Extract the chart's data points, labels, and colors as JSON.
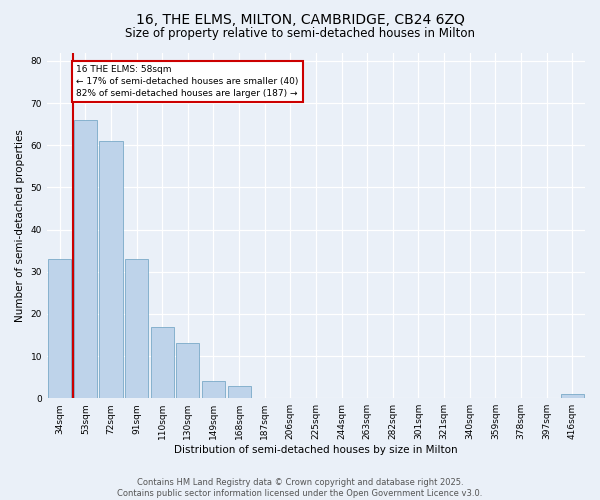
{
  "title_line1": "16, THE ELMS, MILTON, CAMBRIDGE, CB24 6ZQ",
  "title_line2": "Size of property relative to semi-detached houses in Milton",
  "xlabel": "Distribution of semi-detached houses by size in Milton",
  "ylabel": "Number of semi-detached properties",
  "categories": [
    "34sqm",
    "53sqm",
    "72sqm",
    "91sqm",
    "110sqm",
    "130sqm",
    "149sqm",
    "168sqm",
    "187sqm",
    "206sqm",
    "225sqm",
    "244sqm",
    "263sqm",
    "282sqm",
    "301sqm",
    "321sqm",
    "340sqm",
    "359sqm",
    "378sqm",
    "397sqm",
    "416sqm"
  ],
  "values": [
    33,
    66,
    61,
    33,
    17,
    13,
    4,
    3,
    0,
    0,
    0,
    0,
    0,
    0,
    0,
    0,
    0,
    0,
    0,
    0,
    1
  ],
  "bar_color": "#bed3ea",
  "bar_edge_color": "#7aaac8",
  "marker_line_color": "#cc0000",
  "annotation_box_edge_color": "#cc0000",
  "bg_color": "#eaf0f8",
  "grid_color": "#ffffff",
  "pct_smaller": 17,
  "pct_larger": 82,
  "count_smaller": 40,
  "count_larger": 187,
  "ylim": [
    0,
    82
  ],
  "yticks": [
    0,
    10,
    20,
    30,
    40,
    50,
    60,
    70,
    80
  ],
  "title_fontsize": 10,
  "subtitle_fontsize": 8.5,
  "axis_label_fontsize": 7.5,
  "tick_fontsize": 6.5,
  "annotation_fontsize": 6.5,
  "footer_fontsize": 6,
  "footer_line1": "Contains HM Land Registry data © Crown copyright and database right 2025.",
  "footer_line2": "Contains public sector information licensed under the Open Government Licence v3.0."
}
